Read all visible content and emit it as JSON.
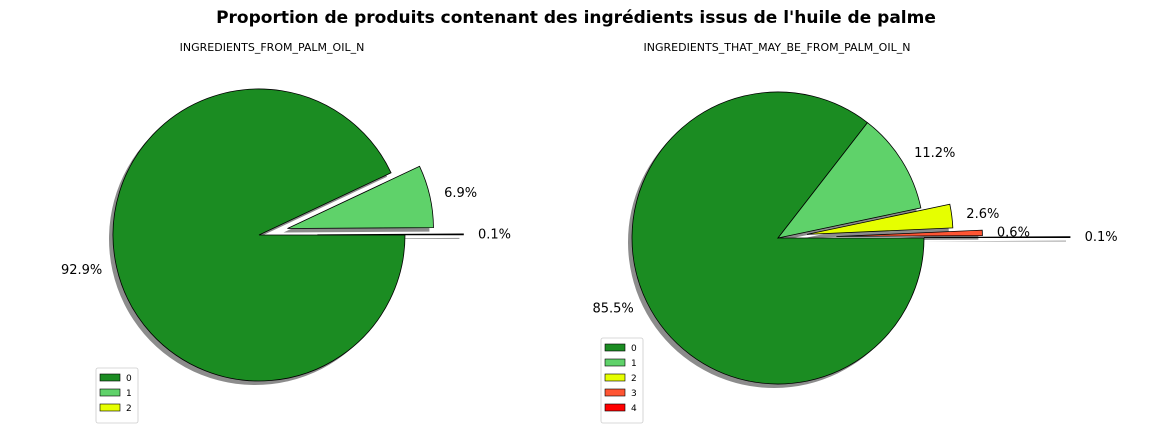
{
  "figure": {
    "title": "Proportion de produits contenant des ingrédients issus de l'huile de palme"
  },
  "chart_data": [
    {
      "type": "pie",
      "title": "INGREDIENTS_FROM_PALM_OIL_N",
      "labels": [
        "0",
        "1",
        "2"
      ],
      "values": [
        92.9,
        6.9,
        0.1
      ],
      "value_labels": [
        "92.9%",
        "6.9%",
        "0.1%"
      ],
      "colors": [
        "#1b8c22",
        "#5fd26a",
        "#e6ff00"
      ],
      "explode": [
        0,
        0.2,
        0.4
      ],
      "shadow": true,
      "legend_position": "lower-left"
    },
    {
      "type": "pie",
      "title": "INGREDIENTS_THAT_MAY_BE_FROM_PALM_OIL_N",
      "labels": [
        "0",
        "1",
        "2",
        "3",
        "4"
      ],
      "values": [
        85.5,
        11.2,
        2.6,
        0.6,
        0.1
      ],
      "value_labels": [
        "85.5%",
        "11.2%",
        "2.6%",
        "0.6%",
        "0.1%"
      ],
      "colors": [
        "#1b8c22",
        "#5fd26a",
        "#e6ff00",
        "#ff5533",
        "#ff0000"
      ],
      "explode": [
        0,
        0,
        0.2,
        0.4,
        1.0
      ],
      "shadow": true,
      "legend_position": "lower-left"
    }
  ]
}
